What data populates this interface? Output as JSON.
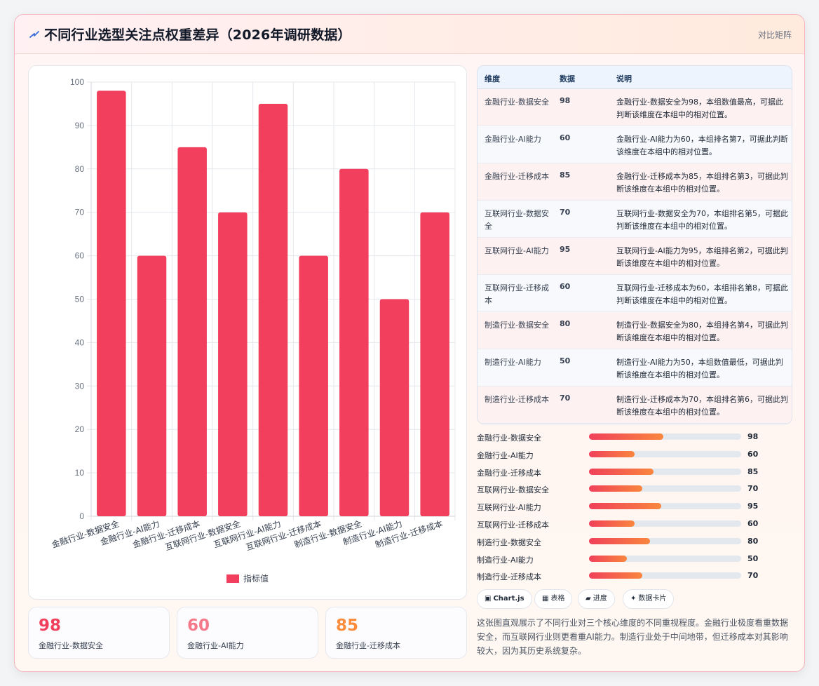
{
  "header": {
    "title": "不同行业选型关注点权重差异（2026年调研数据）",
    "right_label": "对比矩阵",
    "logo_icon": "lightning-icon"
  },
  "colors": {
    "bar": "#f23f5d",
    "accent_orange": "#f9863e",
    "stat_colors": [
      "#f23f5d",
      "#f57a89",
      "#fb8c3c"
    ]
  },
  "chart_data": {
    "type": "bar",
    "categories": [
      "金融行业-数据安全",
      "金融行业-AI能力",
      "金融行业-迁移成本",
      "互联网行业-数据安全",
      "互联网行业-AI能力",
      "互联网行业-迁移成本",
      "制造行业-数据安全",
      "制造行业-AI能力",
      "制造行业-迁移成本"
    ],
    "series": [
      {
        "name": "指标值",
        "values": [
          98,
          60,
          85,
          70,
          95,
          60,
          80,
          50,
          70
        ]
      }
    ],
    "ylim": [
      0,
      100
    ],
    "yticks": [
      0,
      10,
      20,
      30,
      40,
      50,
      60,
      70,
      80,
      90,
      100
    ],
    "grid": true,
    "legend": "bottom"
  },
  "stats": [
    {
      "value": "98",
      "label": "金融行业-数据安全"
    },
    {
      "value": "60",
      "label": "金融行业-AI能力"
    },
    {
      "value": "85",
      "label": "金融行业-迁移成本"
    }
  ],
  "table": {
    "headers": [
      "维度",
      "数据",
      "说明"
    ],
    "rows": [
      {
        "dim": "金融行业-数据安全",
        "val": "98",
        "note": "金融行业-数据安全为98，本组数值最高，可据此判断该维度在本组中的相对位置。"
      },
      {
        "dim": "金融行业-AI能力",
        "val": "60",
        "note": "金融行业-AI能力为60，本组排名第7，可据此判断该维度在本组中的相对位置。"
      },
      {
        "dim": "金融行业-迁移成本",
        "val": "85",
        "note": "金融行业-迁移成本为85，本组排名第3，可据此判断该维度在本组中的相对位置。"
      },
      {
        "dim": "互联网行业-数据安全",
        "val": "70",
        "note": "互联网行业-数据安全为70，本组排名第5，可据此判断该维度在本组中的相对位置。"
      },
      {
        "dim": "互联网行业-AI能力",
        "val": "95",
        "note": "互联网行业-AI能力为95，本组排名第2，可据此判断该维度在本组中的相对位置。"
      },
      {
        "dim": "互联网行业-迁移成本",
        "val": "60",
        "note": "互联网行业-迁移成本为60，本组排名第8，可据此判断该维度在本组中的相对位置。"
      },
      {
        "dim": "制造行业-数据安全",
        "val": "80",
        "note": "制造行业-数据安全为80，本组排名第4，可据此判断该维度在本组中的相对位置。"
      },
      {
        "dim": "制造行业-AI能力",
        "val": "50",
        "note": "制造行业-AI能力为50，本组数值最低，可据此判断该维度在本组中的相对位置。"
      },
      {
        "dim": "制造行业-迁移成本",
        "val": "70",
        "note": "制造行业-迁移成本为70，本组排名第6，可据此判断该维度在本组中的相对位置。"
      }
    ]
  },
  "progress": {
    "max": 100,
    "items": [
      {
        "label": "金融行业-数据安全",
        "value": 98
      },
      {
        "label": "金融行业-AI能力",
        "value": 60
      },
      {
        "label": "金融行业-迁移成本",
        "value": 85
      },
      {
        "label": "互联网行业-数据安全",
        "value": 70
      },
      {
        "label": "互联网行业-AI能力",
        "value": 95
      },
      {
        "label": "互联网行业-迁移成本",
        "value": 60
      },
      {
        "label": "制造行业-数据安全",
        "value": 80
      },
      {
        "label": "制造行业-AI能力",
        "value": 50
      },
      {
        "label": "制造行业-迁移成本",
        "value": 70
      }
    ]
  },
  "chips": [
    {
      "icon": "▣",
      "label": "Chart.js"
    },
    {
      "icon": "▦",
      "label": "表格"
    },
    {
      "icon": "▰",
      "label": "进度"
    },
    {
      "icon": "✦",
      "label": "数据卡片"
    }
  ],
  "description": "这张图直观展示了不同行业对三个核心维度的不同重视程度。金融行业极度看重数据安全，而互联网行业则更看重AI能力。制造行业处于中间地带，但迁移成本对其影响较大，因为其历史系统复杂。"
}
